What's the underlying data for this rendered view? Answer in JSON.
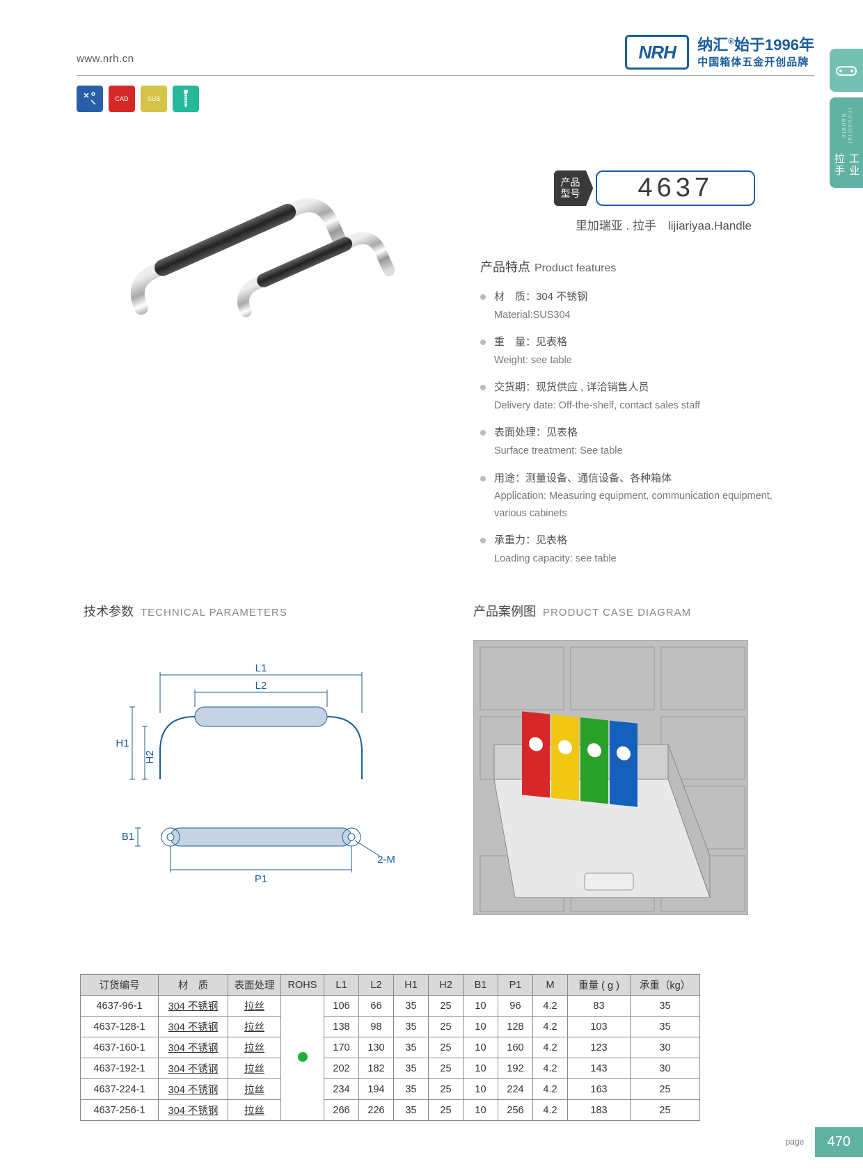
{
  "header": {
    "url": "www.nrh.cn",
    "logo": "NRH",
    "cn1": "纳汇",
    "reg": "®",
    "since": "始于1996年",
    "cn2": "中国箱体五金开创品牌"
  },
  "icons": {
    "cad": "CAD",
    "sus": "SUS"
  },
  "sidetab": {
    "icon": "▭",
    "cn": "工业拉手",
    "en": "Industrial handle"
  },
  "model": {
    "label1": "产品",
    "label2": "型号",
    "num": "4637",
    "sub_cn": "里加瑞亚 . 拉手",
    "sub_en": "lijiariyaa.Handle"
  },
  "features": {
    "title_cn": "产品特点",
    "title_en": "Product features",
    "items": [
      {
        "cn": "材　质：304 不锈钢",
        "en": "Material:SUS304"
      },
      {
        "cn": "重　量：见表格",
        "en": "Weight: see table"
      },
      {
        "cn": "交货期：现货供应 , 详洽销售人员",
        "en": "Delivery date: Off-the-shelf, contact sales staff"
      },
      {
        "cn": "表面处理：见表格",
        "en": "Surface treatment: See table"
      },
      {
        "cn": "用途：测量设备、通信设备、各种箱体",
        "en": "Application: Measuring equipment, communication equipment, various cabinets"
      },
      {
        "cn": "承重力：见表格",
        "en": "Loading capacity: see table"
      }
    ]
  },
  "sections": {
    "tech_cn": "技术参数",
    "tech_en": "TECHNICAL PARAMETERS",
    "case_cn": "产品案例图",
    "case_en": "PRODUCT CASE DIAGRAM"
  },
  "diagram": {
    "L1": "L1",
    "L2": "L2",
    "H1": "H1",
    "H2": "H2",
    "B1": "B1",
    "P1": "P1",
    "M": "2-M"
  },
  "table": {
    "headers": [
      "订货编号",
      "材　质",
      "表面处理",
      "ROHS",
      "L1",
      "L2",
      "H1",
      "H2",
      "B1",
      "P1",
      "M",
      "重量 ( g )",
      "承重（kg）"
    ],
    "rows": [
      [
        "4637-96-1",
        "304 不锈钢",
        "拉丝",
        "",
        "106",
        "66",
        "35",
        "25",
        "10",
        "96",
        "4.2",
        "83",
        "35"
      ],
      [
        "4637-128-1",
        "304 不锈钢",
        "拉丝",
        "",
        "138",
        "98",
        "35",
        "25",
        "10",
        "128",
        "4.2",
        "103",
        "35"
      ],
      [
        "4637-160-1",
        "304 不锈钢",
        "拉丝",
        "",
        "170",
        "130",
        "35",
        "25",
        "10",
        "160",
        "4.2",
        "123",
        "30"
      ],
      [
        "4637-192-1",
        "304 不锈钢",
        "拉丝",
        "",
        "202",
        "182",
        "35",
        "25",
        "10",
        "192",
        "4.2",
        "143",
        "30"
      ],
      [
        "4637-224-1",
        "304 不锈钢",
        "拉丝",
        "",
        "234",
        "194",
        "35",
        "25",
        "10",
        "224",
        "4.2",
        "163",
        "25"
      ],
      [
        "4637-256-1",
        "304 不锈钢",
        "拉丝",
        "",
        "266",
        "226",
        "35",
        "25",
        "10",
        "256",
        "4.2",
        "183",
        "25"
      ]
    ]
  },
  "footer": {
    "label": "page",
    "num": "470"
  }
}
